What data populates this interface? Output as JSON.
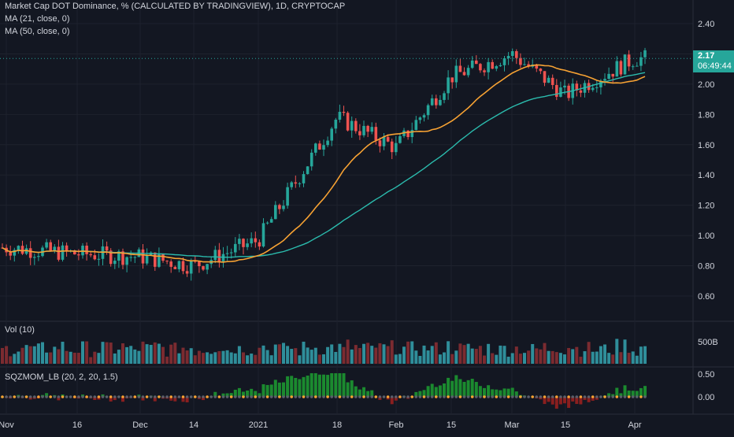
{
  "header": {
    "title": "Market Cap DOT Dominance, % (CALCULATED BY TRADINGVIEW), 1D, CRYPTOCAP",
    "ma1": "MA (21, close, 0)",
    "ma2": "MA (50, close, 0)"
  },
  "last_price": {
    "value": "2.17",
    "countdown": "06:49:44"
  },
  "volume_pane": {
    "label": "Vol (10)",
    "tick": "500B"
  },
  "momentum_pane": {
    "label": "SQZMOM_LB (20, 2, 20, 1.5)",
    "ticks": [
      "0.50",
      "0.00"
    ]
  },
  "colors": {
    "background": "#131722",
    "up": "#26a69a",
    "down": "#ef5350",
    "ma21": "#f7a233",
    "ma50": "#2bbbad",
    "grid": "#1e222d"
  },
  "chart_data": {
    "type": "candlestick",
    "price_axis_ticks": [
      "0.60",
      "0.80",
      "1.00",
      "1.20",
      "1.40",
      "1.60",
      "1.80",
      "2.00",
      "2.20",
      "2.40"
    ],
    "ylim": [
      0.5,
      2.45
    ],
    "time_axis_labels": [
      "Nov",
      "16",
      "Dec",
      "14",
      "2021",
      "18",
      "Feb",
      "15",
      "Mar",
      "15",
      "Apr"
    ],
    "key_closes": [
      {
        "x": "Nov",
        "y": 0.92
      },
      {
        "x": "16",
        "y": 0.88
      },
      {
        "x": "Dec",
        "y": 0.86
      },
      {
        "x": "14",
        "y": 0.8
      },
      {
        "x": "2021",
        "y": 0.97
      },
      {
        "x": "18",
        "y": 1.78
      },
      {
        "x": "Feb",
        "y": 1.58
      },
      {
        "x": "15",
        "y": 2.05
      },
      {
        "x": "Mar",
        "y": 2.2
      },
      {
        "x": "15",
        "y": 1.93
      },
      {
        "x": "Apr",
        "y": 2.17
      }
    ],
    "series": [
      {
        "name": "MA (21, close, 0)",
        "color": "#f7a233"
      },
      {
        "name": "MA (50, close, 0)",
        "color": "#2bbbad"
      }
    ]
  }
}
